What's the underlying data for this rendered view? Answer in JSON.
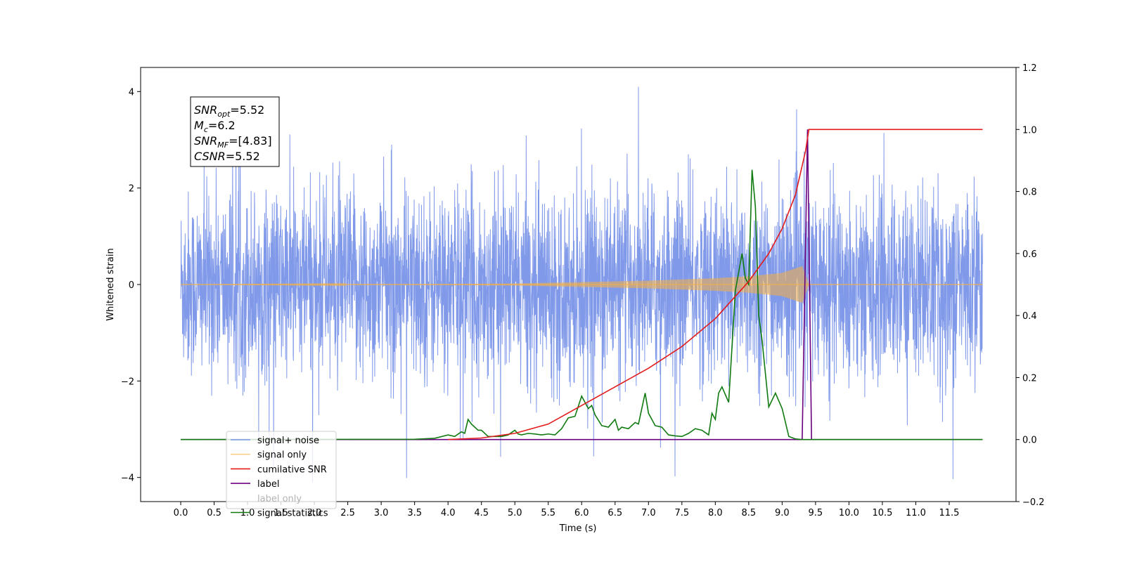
{
  "chart_data": {
    "type": "line",
    "title": "",
    "xlabel": "Time (s)",
    "ylabel": "Whitened strain",
    "y2label": "",
    "xlim": [
      -0.6,
      12.5
    ],
    "ylim": [
      -4.5,
      4.5
    ],
    "y2lim": [
      -0.2,
      1.2
    ],
    "x_ticks": [
      0.0,
      0.5,
      1.0,
      1.5,
      2.0,
      2.5,
      3.0,
      3.5,
      4.0,
      4.5,
      5.0,
      5.5,
      6.0,
      6.5,
      7.0,
      7.5,
      8.0,
      8.5,
      9.0,
      9.5,
      10.0,
      10.5,
      11.0,
      11.5
    ],
    "x_tick_labels": [
      "0.0",
      "0.5",
      "1.0",
      "1.5",
      "2.0",
      "2.5",
      "3.0",
      "3.5",
      "4.0",
      "4.5",
      "5.0",
      "5.5",
      "6.0",
      "6.5",
      "7.0",
      "7.5",
      "8.0",
      "8.5",
      "9.0",
      "9.5",
      "10.0",
      "10.5",
      "11.0",
      "11.5"
    ],
    "y_ticks": [
      4,
      2,
      0,
      -2,
      -4
    ],
    "y_tick_labels": [
      "4",
      "2",
      "0",
      "−2",
      "−4"
    ],
    "y2_ticks": [
      1.2,
      1.0,
      0.8,
      0.6,
      0.4,
      0.2,
      0.0,
      -0.2
    ],
    "y2_tick_labels": [
      "1.2",
      "1.0",
      "0.8",
      "0.6",
      "0.4",
      "0.2",
      "0.0",
      "−0.2"
    ],
    "grid": false,
    "legend_position": "lower-left",
    "annotation": {
      "lines": [
        {
          "base": "SNR",
          "sub": "opt",
          "value": "=5.52"
        },
        {
          "base": "M",
          "sub": "c",
          "value": "=6.2"
        },
        {
          "base": "SNR",
          "sub": "MF",
          "value": "=[4.83]"
        },
        {
          "base": "CSNR",
          "sub": "",
          "value": "=5.52"
        }
      ]
    },
    "series": [
      {
        "name": "signal+ noise",
        "axis": "left",
        "color": "#7994e8",
        "note": "whitened noise, amplitude approximately ±2.5 with spikes to about 4.1, spanning 0.0–12.0 s",
        "x_range": [
          0.0,
          12.0
        ],
        "envelope": 2.5
      },
      {
        "name": "signal only",
        "axis": "left",
        "color": "#f5b041",
        "x": [
          0.0,
          4.0,
          5.0,
          6.0,
          7.0,
          8.0,
          8.5,
          9.0,
          9.3,
          9.4,
          12.0
        ],
        "envelope": [
          0.0,
          0.01,
          0.02,
          0.05,
          0.08,
          0.13,
          0.17,
          0.24,
          0.38,
          0.0,
          0.0
        ]
      },
      {
        "name": "cumilative SNR",
        "axis": "right",
        "color": "#e31a1c",
        "x": [
          4.0,
          4.5,
          5.0,
          5.5,
          6.0,
          6.5,
          7.0,
          7.5,
          8.0,
          8.5,
          8.8,
          9.0,
          9.2,
          9.35,
          9.4,
          12.0
        ],
        "y": [
          0.0,
          0.005,
          0.02,
          0.05,
          0.11,
          0.17,
          0.23,
          0.3,
          0.39,
          0.51,
          0.6,
          0.68,
          0.79,
          0.93,
          1.0,
          1.0
        ]
      },
      {
        "name": "label",
        "axis": "right",
        "color": "#6a0080",
        "x": [
          0.0,
          9.3,
          9.38,
          9.44,
          12.0
        ],
        "y": [
          0.0,
          0.0,
          1.0,
          0.0,
          0.0
        ]
      },
      {
        "name": "label only",
        "axis": "right",
        "color": "#000000",
        "legend_only": true
      },
      {
        "name": "signal statistics",
        "axis": "right",
        "color": "#107a10",
        "x": [
          0.0,
          3.5,
          3.8,
          4.0,
          4.1,
          4.2,
          4.25,
          4.3,
          4.35,
          4.45,
          4.5,
          4.6,
          4.7,
          4.8,
          4.9,
          5.0,
          5.05,
          5.1,
          5.2,
          5.3,
          5.4,
          5.5,
          5.6,
          5.7,
          5.8,
          5.9,
          6.0,
          6.05,
          6.1,
          6.15,
          6.2,
          6.3,
          6.4,
          6.5,
          6.55,
          6.6,
          6.7,
          6.8,
          6.85,
          6.9,
          6.95,
          7.0,
          7.1,
          7.2,
          7.3,
          7.4,
          7.5,
          7.6,
          7.7,
          7.8,
          7.9,
          7.95,
          8.0,
          8.05,
          8.1,
          8.2,
          8.3,
          8.4,
          8.45,
          8.5,
          8.55,
          8.6,
          8.65,
          8.7,
          8.8,
          8.9,
          9.0,
          9.1,
          9.2,
          9.3,
          9.4,
          12.0
        ],
        "y": [
          0.0,
          0.001,
          0.004,
          0.015,
          0.01,
          0.025,
          0.02,
          0.065,
          0.05,
          0.03,
          0.03,
          0.01,
          0.01,
          0.01,
          0.015,
          0.03,
          0.018,
          0.015,
          0.02,
          0.018,
          0.015,
          0.018,
          0.015,
          0.035,
          0.07,
          0.075,
          0.14,
          0.12,
          0.1,
          0.11,
          0.08,
          0.045,
          0.04,
          0.065,
          0.03,
          0.04,
          0.035,
          0.055,
          0.05,
          0.1,
          0.15,
          0.085,
          0.045,
          0.04,
          0.015,
          0.012,
          0.01,
          0.02,
          0.035,
          0.03,
          0.015,
          0.085,
          0.065,
          0.15,
          0.17,
          0.12,
          0.48,
          0.6,
          0.52,
          0.5,
          0.87,
          0.75,
          0.4,
          0.32,
          0.105,
          0.15,
          0.1,
          0.01,
          0.002,
          0.0,
          0.0,
          0.0
        ]
      }
    ]
  }
}
